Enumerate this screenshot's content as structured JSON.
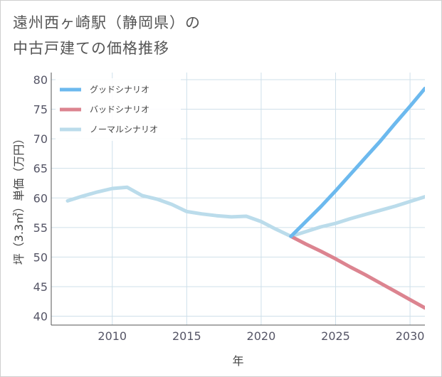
{
  "title": {
    "line1": "遠州西ヶ崎駅（静岡県）の",
    "line2": "中古戸建ての価格推移"
  },
  "colors": {
    "good": "#6cb9ee",
    "bad": "#dc8490",
    "normal": "#bbdceb",
    "grid": "#cfe0ea",
    "axis": "#555555",
    "legend_bg": "#ffffff"
  },
  "chart_data": {
    "type": "line",
    "title": "遠州西ヶ崎駅（静岡県）の中古戸建ての価格推移",
    "xlabel": "年",
    "ylabel": "坪（3.3㎡）単価（万円）",
    "xlim": [
      2005.9,
      2031
    ],
    "ylim": [
      38.5,
      81.2
    ],
    "x_ticks": [
      2010,
      2015,
      2020,
      2025,
      2030
    ],
    "y_ticks": [
      40,
      45,
      50,
      55,
      60,
      65,
      70,
      75,
      80
    ],
    "grid": true,
    "legend_position": "top-left",
    "series": [
      {
        "name": "グッドシナリオ",
        "key": "good",
        "x": [
          2022,
          2023,
          2024,
          2025,
          2026,
          2027,
          2028,
          2029,
          2030,
          2031
        ],
        "y": [
          53.5,
          56.0,
          58.5,
          61.2,
          64.0,
          66.8,
          69.6,
          72.6,
          75.5,
          78.5
        ]
      },
      {
        "name": "バッドシナリオ",
        "key": "bad",
        "x": [
          2022,
          2023,
          2024,
          2025,
          2026,
          2027,
          2028,
          2029,
          2030,
          2031
        ],
        "y": [
          53.5,
          52.2,
          51.0,
          49.7,
          48.3,
          47.0,
          45.6,
          44.2,
          42.8,
          41.4
        ]
      },
      {
        "name": "ノーマルシナリオ",
        "key": "normal",
        "x": [
          2007,
          2008,
          2009,
          2010,
          2011,
          2012,
          2013,
          2014,
          2015,
          2016,
          2017,
          2018,
          2019,
          2020,
          2021,
          2022,
          2023,
          2024,
          2025,
          2026,
          2027,
          2028,
          2029,
          2030,
          2031
        ],
        "y": [
          59.5,
          60.3,
          61.0,
          61.6,
          61.8,
          60.4,
          59.8,
          58.9,
          57.7,
          57.3,
          57.0,
          56.8,
          56.9,
          56.0,
          54.7,
          53.5,
          54.3,
          55.1,
          55.7,
          56.5,
          57.2,
          57.9,
          58.6,
          59.4,
          60.2
        ]
      }
    ]
  }
}
